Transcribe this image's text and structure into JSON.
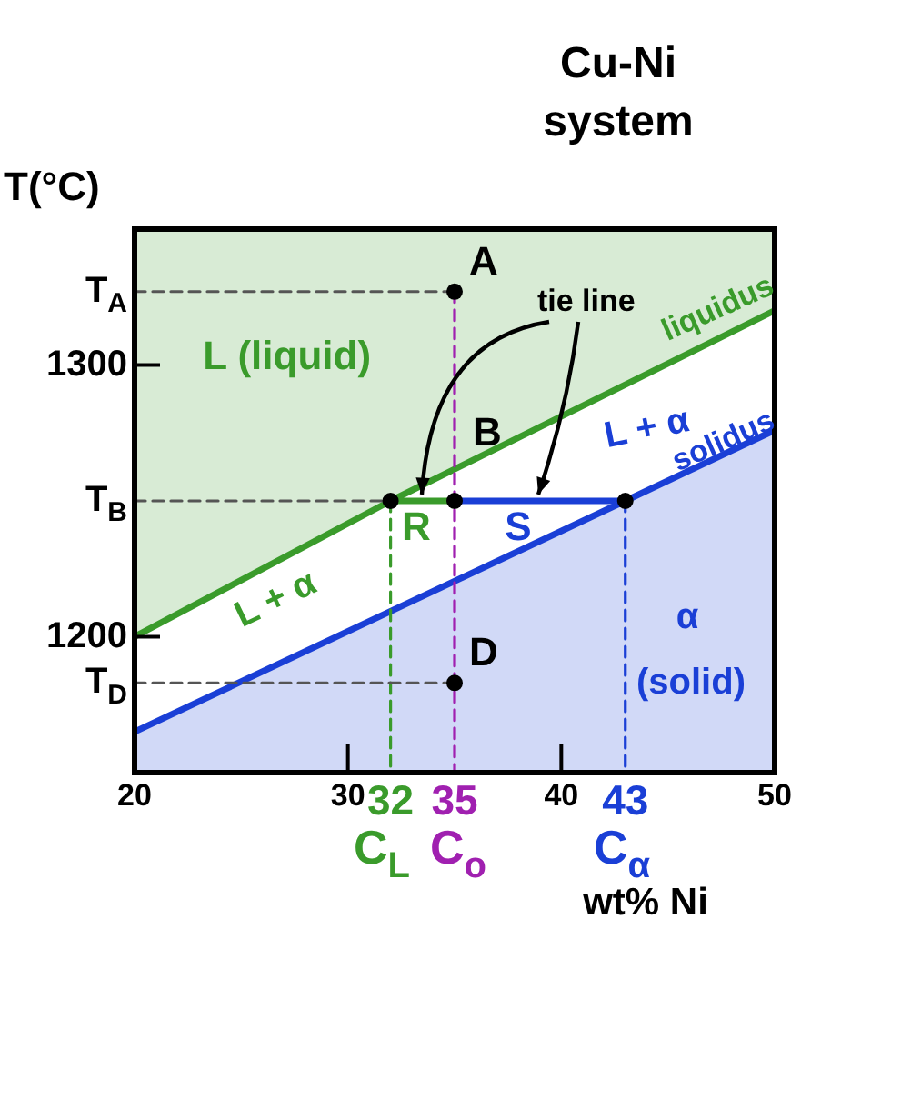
{
  "chart_data": {
    "type": "line",
    "title": "Cu-Ni system",
    "xlabel": "wt% Ni",
    "ylabel": "T(°C)",
    "xlim": [
      20,
      50
    ],
    "xticks": [
      20,
      30,
      32,
      35,
      40,
      43,
      50
    ],
    "ylim": [
      1150,
      1350
    ],
    "yticks": [
      {
        "value": 1327,
        "label": "T$_{A}$"
      },
      1300,
      {
        "value": 1250,
        "label": "T$_{B}$"
      },
      1200,
      {
        "value": 1183,
        "label": "T$_{D}$"
      }
    ],
    "legend": false,
    "marker": "none",
    "series": [
      {
        "type": "area",
        "color": "#3a9b2b",
        "x": [
          20,
          32,
          50
        ],
        "values": [
          1200,
          1250,
          1320
        ]
      },
      {
        "type": "area",
        "color": "#1a3fd6",
        "x": [
          20,
          43,
          50
        ],
        "values": [
          1165,
          1250,
          1276
        ]
      },
      {
        "type": "line",
        "color": "#3a9b2b",
        "x": [
          32,
          35
        ],
        "values": [
          1250,
          1250
        ]
      },
      {
        "type": "line",
        "color": "#1a3fd6",
        "x": [
          35,
          43
        ],
        "values": [
          1250,
          1250
        ]
      },
      {
        "type": "line",
        "color": "#555555",
        "line_style": "dashed",
        "x": [
          20,
          35
        ],
        "values": [
          1327,
          1327
        ]
      },
      {
        "type": "line",
        "color": "#555555",
        "line_style": "dashed",
        "x": [
          20,
          32
        ],
        "values": [
          1250,
          1250
        ]
      },
      {
        "type": "line",
        "color": "#555555",
        "line_style": "dashed",
        "x": [
          20,
          35
        ],
        "values": [
          1183,
          1183
        ]
      },
      {
        "type": "line",
        "color": "#3a9b2b",
        "line_style": "dashed",
        "x": [
          32,
          32
        ],
        "values": [
          1250,
          1150
        ]
      },
      {
        "type": "line",
        "color": "#a020b0",
        "line_style": "dashed",
        "x": [
          35,
          35
        ],
        "values": [
          1327,
          1150
        ]
      },
      {
        "type": "line",
        "color": "#1a3fd6",
        "line_style": "dashed",
        "x": [
          43,
          43
        ],
        "values": [
          1250,
          1150
        ]
      },
      {
        "type": "scatter",
        "color": "#000000",
        "marker": "circle",
        "x": [
          35,
          35,
          35,
          32,
          43
        ],
        "values": [
          1327,
          1250,
          1183,
          1250,
          1250
        ]
      }
    ],
    "annotations": [
      "A",
      "B",
      "D",
      "R",
      "S",
      {
        "text": "tie line",
        "x": 33.5,
        "y": 1250
      },
      "L (liquid)",
      "liquidus",
      "L + α",
      "solidus",
      "L + α",
      "α",
      "(solid)",
      "C$_{L}$",
      "C$_{o}$",
      "C$_{α}$"
    ]
  }
}
